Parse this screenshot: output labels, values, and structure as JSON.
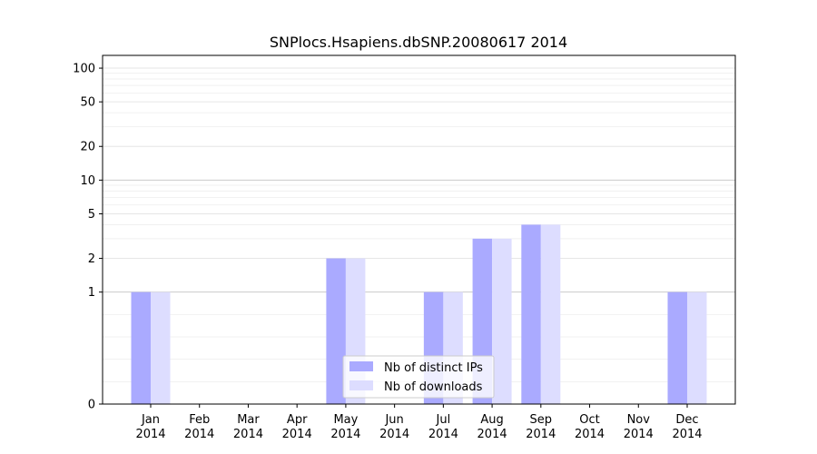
{
  "chart_data": {
    "type": "bar",
    "title": "SNPlocs.Hsapiens.dbSNP.20080617 2014",
    "xlabel": "",
    "ylabel": "",
    "y_scale": "symlog",
    "ylim": [
      0,
      130
    ],
    "y_ticks": [
      {
        "value": 0,
        "label": "0"
      },
      {
        "value": 1,
        "label": "1"
      },
      {
        "value": 2,
        "label": "2"
      },
      {
        "value": 5,
        "label": "5"
      },
      {
        "value": 10,
        "label": "10"
      },
      {
        "value": 20,
        "label": "20"
      },
      {
        "value": 50,
        "label": "50"
      },
      {
        "value": 100,
        "label": "100"
      }
    ],
    "categories": [
      {
        "month": "Jan",
        "year": "2014"
      },
      {
        "month": "Feb",
        "year": "2014"
      },
      {
        "month": "Mar",
        "year": "2014"
      },
      {
        "month": "Apr",
        "year": "2014"
      },
      {
        "month": "May",
        "year": "2014"
      },
      {
        "month": "Jun",
        "year": "2014"
      },
      {
        "month": "Jul",
        "year": "2014"
      },
      {
        "month": "Aug",
        "year": "2014"
      },
      {
        "month": "Sep",
        "year": "2014"
      },
      {
        "month": "Oct",
        "year": "2014"
      },
      {
        "month": "Nov",
        "year": "2014"
      },
      {
        "month": "Dec",
        "year": "2014"
      }
    ],
    "series": [
      {
        "name": "Nb of distinct IPs",
        "color": "#aaaaff",
        "values": [
          1,
          0,
          0,
          0,
          2,
          0,
          1,
          3,
          4,
          0,
          0,
          1
        ]
      },
      {
        "name": "Nb of downloads",
        "color": "#ddddff",
        "values": [
          1,
          0,
          0,
          0,
          2,
          0,
          1,
          3,
          4,
          0,
          0,
          1
        ]
      }
    ],
    "grid": true,
    "legend_position": "lower center"
  }
}
